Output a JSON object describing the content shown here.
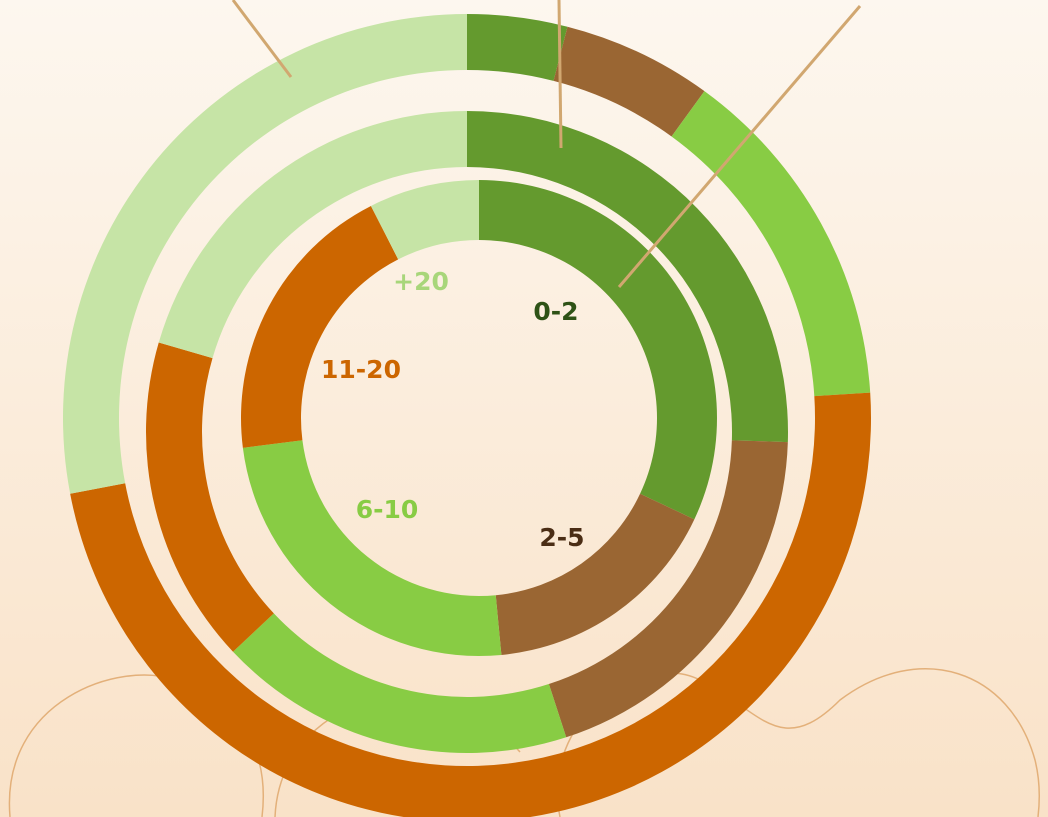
{
  "chart_data": {
    "type": "pie",
    "subtype": "multi-ring donut",
    "categories": [
      "0-2",
      "2-5",
      "6-10",
      "11-20",
      "+20"
    ],
    "colors": [
      "#649a2e",
      "#9a6633",
      "#88cc44",
      "#cc6600",
      "#c6e4a6"
    ],
    "label_colors": [
      "#2e5216",
      "#4a2d15",
      "#88cc44",
      "#cc6600",
      "#a8d67a"
    ],
    "rings": [
      {
        "values": [
          4.0,
          6.0,
          14.0,
          48.0,
          28.0
        ]
      },
      {
        "values": [
          25.5,
          19.5,
          18.0,
          16.5,
          20.5
        ]
      },
      {
        "values": [
          32.0,
          16.5,
          24.5,
          19.5,
          7.5
        ]
      }
    ],
    "leader_lines": 3,
    "legend": "none"
  }
}
